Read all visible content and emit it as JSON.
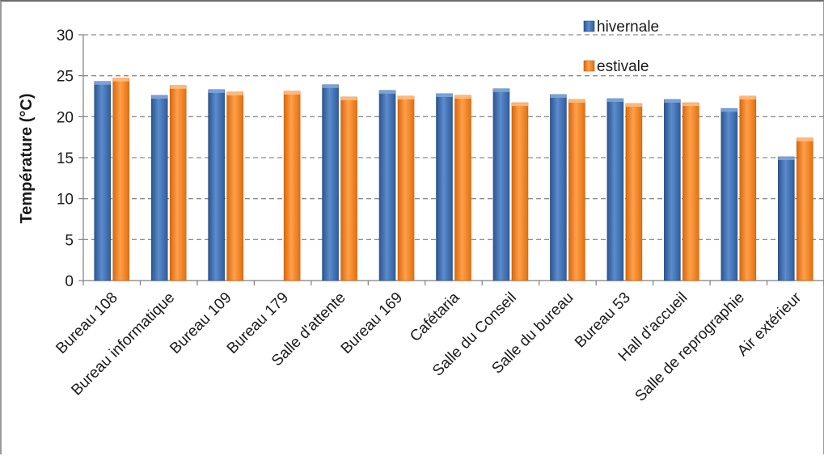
{
  "chart_data": {
    "type": "bar",
    "title": "",
    "xlabel": "",
    "ylabel": "Température (°C)",
    "ylim": [
      0,
      30
    ],
    "yticks": [
      0,
      5,
      10,
      15,
      20,
      25,
      30
    ],
    "grid": true,
    "legend": "top-right",
    "categories": [
      "Bureau 108",
      "Bureau informatique",
      "Bureau 109",
      "Bureau 179",
      "Salle d'attente",
      "Bureau 169",
      "Cafétaria",
      "Salle du Conseil",
      "Salle du bureau",
      "Bureau 53",
      "Hall d'accueil",
      "Salle de reprographie",
      "Air extérieur"
    ],
    "series": [
      {
        "name": "hivernale",
        "color": "#3f6fb4",
        "values": [
          24.3,
          22.6,
          23.3,
          null,
          23.9,
          23.2,
          22.8,
          23.4,
          22.7,
          22.2,
          22.1,
          21.0,
          15.1
        ]
      },
      {
        "name": "estivale",
        "color": "#f07f1b",
        "values": [
          24.7,
          23.8,
          23.0,
          23.1,
          22.4,
          22.5,
          22.6,
          21.7,
          22.1,
          21.6,
          21.7,
          22.5,
          17.4
        ]
      }
    ]
  }
}
